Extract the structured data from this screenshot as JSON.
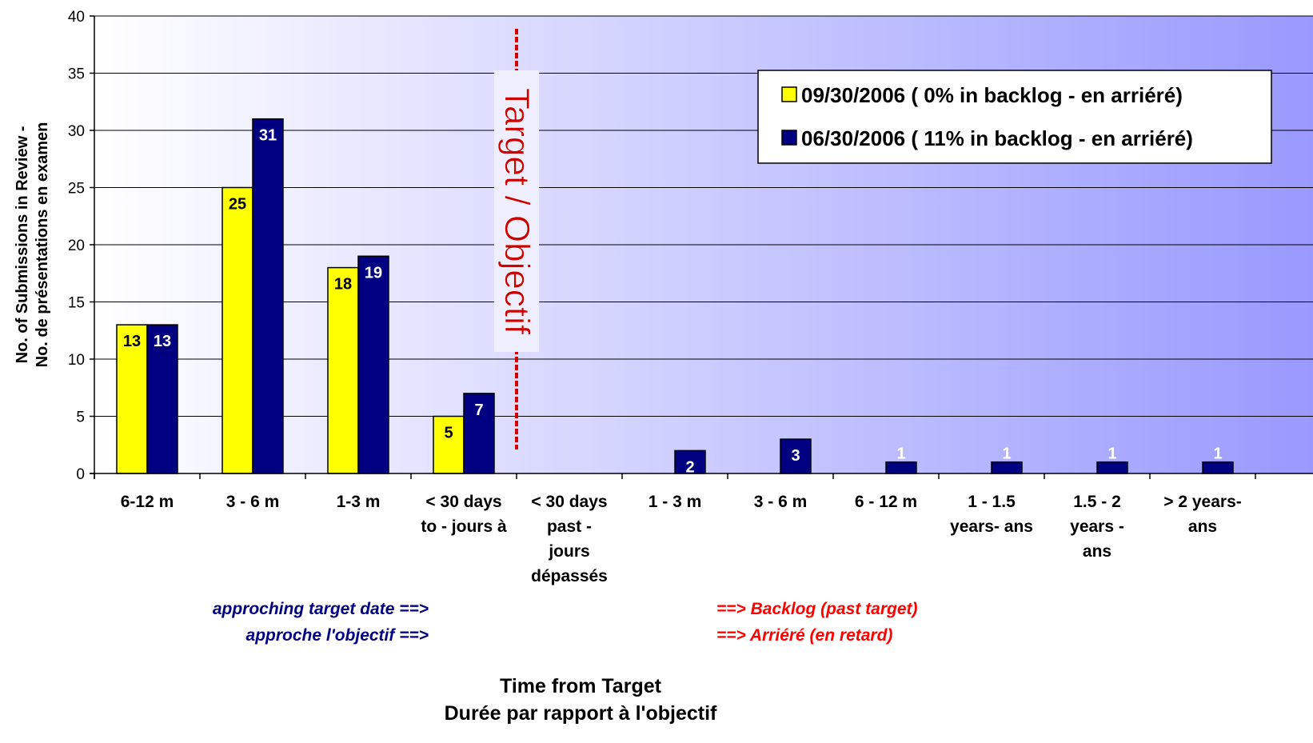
{
  "chart_data": {
    "type": "bar",
    "title": "",
    "xlabel_lines": [
      "Time from Target",
      "Durée par rapport à l'objectif"
    ],
    "ylabel_lines": [
      "No. of Submissions in Review -",
      "No. de présentations en examen"
    ],
    "ylim": [
      0,
      40
    ],
    "yticks": [
      0,
      5,
      10,
      15,
      20,
      25,
      30,
      35,
      40
    ],
    "grid": "horizontal",
    "legend_position": "top-right",
    "categories": [
      [
        "6-12 m"
      ],
      [
        "3 - 6 m"
      ],
      [
        "1-3 m"
      ],
      [
        "< 30 days",
        "to - jours à"
      ],
      [
        "<  30 days",
        "past -",
        "jours",
        "dépassés"
      ],
      [
        "1 - 3 m"
      ],
      [
        "3 - 6 m"
      ],
      [
        "6 - 12 m"
      ],
      [
        "1 - 1.5",
        "years- ans"
      ],
      [
        "1.5 - 2",
        "years -",
        "ans"
      ],
      [
        ">  2 years-",
        "ans"
      ]
    ],
    "series": [
      {
        "name": "09/30/2006 ( 0% in backlog - en arriéré)",
        "color": "#ffff00",
        "label_color": "#000000",
        "values": [
          13,
          25,
          18,
          5,
          0,
          0,
          0,
          0,
          0,
          0,
          0
        ]
      },
      {
        "name": "06/30/2006 ( 11% in backlog - en arriéré)",
        "color": "#000080",
        "label_color": "#ffffff",
        "values": [
          13,
          31,
          19,
          7,
          0,
          2,
          3,
          1,
          1,
          1,
          1
        ]
      }
    ],
    "annotations": {
      "target_line": "Target / Objectif",
      "approaching": [
        "approching target date ==>",
        "approche l'objectif ==>"
      ],
      "backlog": [
        "==> Backlog (past target)",
        "==> Arriéré (en retard)"
      ]
    },
    "background_gradient": [
      "#ffffff",
      "#9999ff"
    ]
  }
}
